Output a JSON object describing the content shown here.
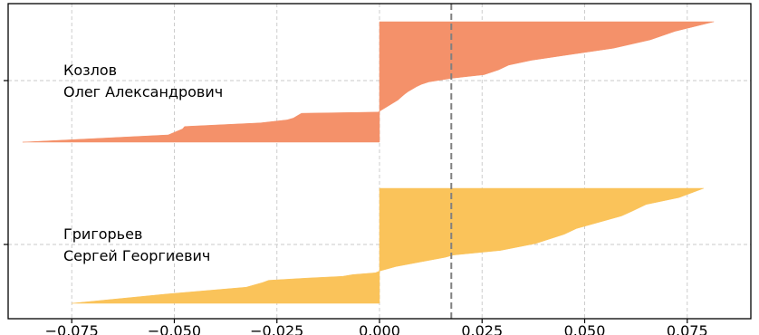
{
  "chart_data": {
    "type": "area",
    "title": "",
    "xlabel": "",
    "ylabel": "",
    "xlim": [
      -0.0905,
      0.0905
    ],
    "xticks": [
      -0.075,
      -0.05,
      -0.025,
      0.0,
      0.025,
      0.05,
      0.075
    ],
    "xtick_labels": [
      "−0.075",
      "−0.050",
      "−0.025",
      "0.000",
      "0.025",
      "0.050",
      "0.075"
    ],
    "grid": true,
    "reference_line": {
      "x": 0.0175,
      "style": "dashed",
      "color": "#808080"
    },
    "series": [
      {
        "label_lines": [
          "Козлов",
          "Олег Александрович"
        ],
        "color": "#f4916a",
        "profile": [
          [
            0.0,
            -0.087
          ],
          [
            0.06,
            -0.0515
          ],
          [
            0.11,
            -0.048
          ],
          [
            0.13,
            -0.0475
          ],
          [
            0.16,
            -0.029
          ],
          [
            0.185,
            -0.0225
          ],
          [
            0.2,
            -0.021
          ],
          [
            0.22,
            -0.02
          ],
          [
            0.24,
            -0.019
          ],
          [
            0.25,
            -0.0003
          ],
          [
            0.35,
            0.0045
          ],
          [
            0.38,
            0.0055
          ],
          [
            0.4,
            0.0062
          ],
          [
            0.42,
            0.007
          ],
          [
            0.44,
            0.008
          ],
          [
            0.46,
            0.009
          ],
          [
            0.48,
            0.0102
          ],
          [
            0.5,
            0.012
          ],
          [
            0.53,
            0.0175
          ],
          [
            0.56,
            0.0255
          ],
          [
            0.6,
            0.029
          ],
          [
            0.64,
            0.0315
          ],
          [
            0.68,
            0.037
          ],
          [
            0.72,
            0.045
          ],
          [
            0.78,
            0.057
          ],
          [
            0.85,
            0.066
          ],
          [
            0.92,
            0.072
          ],
          [
            1.0,
            0.0815
          ]
        ]
      },
      {
        "label_lines": [
          "Григорьев",
          "Сергей Георгиевич"
        ],
        "color": "#fac35a",
        "profile": [
          [
            0.0,
            -0.075
          ],
          [
            0.08,
            -0.052
          ],
          [
            0.14,
            -0.0325
          ],
          [
            0.18,
            -0.0285
          ],
          [
            0.2,
            -0.027
          ],
          [
            0.22,
            -0.0175
          ],
          [
            0.235,
            -0.009
          ],
          [
            0.25,
            -0.0065
          ],
          [
            0.265,
            -0.001
          ],
          [
            0.28,
            0.0
          ],
          [
            0.32,
            0.004
          ],
          [
            0.36,
            0.01
          ],
          [
            0.4,
            0.016
          ],
          [
            0.42,
            0.018
          ],
          [
            0.46,
            0.0295
          ],
          [
            0.52,
            0.038
          ],
          [
            0.56,
            0.0415
          ],
          [
            0.6,
            0.045
          ],
          [
            0.65,
            0.048
          ],
          [
            0.7,
            0.053
          ],
          [
            0.76,
            0.059
          ],
          [
            0.8,
            0.0615
          ],
          [
            0.86,
            0.065
          ],
          [
            0.92,
            0.073
          ],
          [
            1.0,
            0.079
          ]
        ]
      }
    ]
  }
}
